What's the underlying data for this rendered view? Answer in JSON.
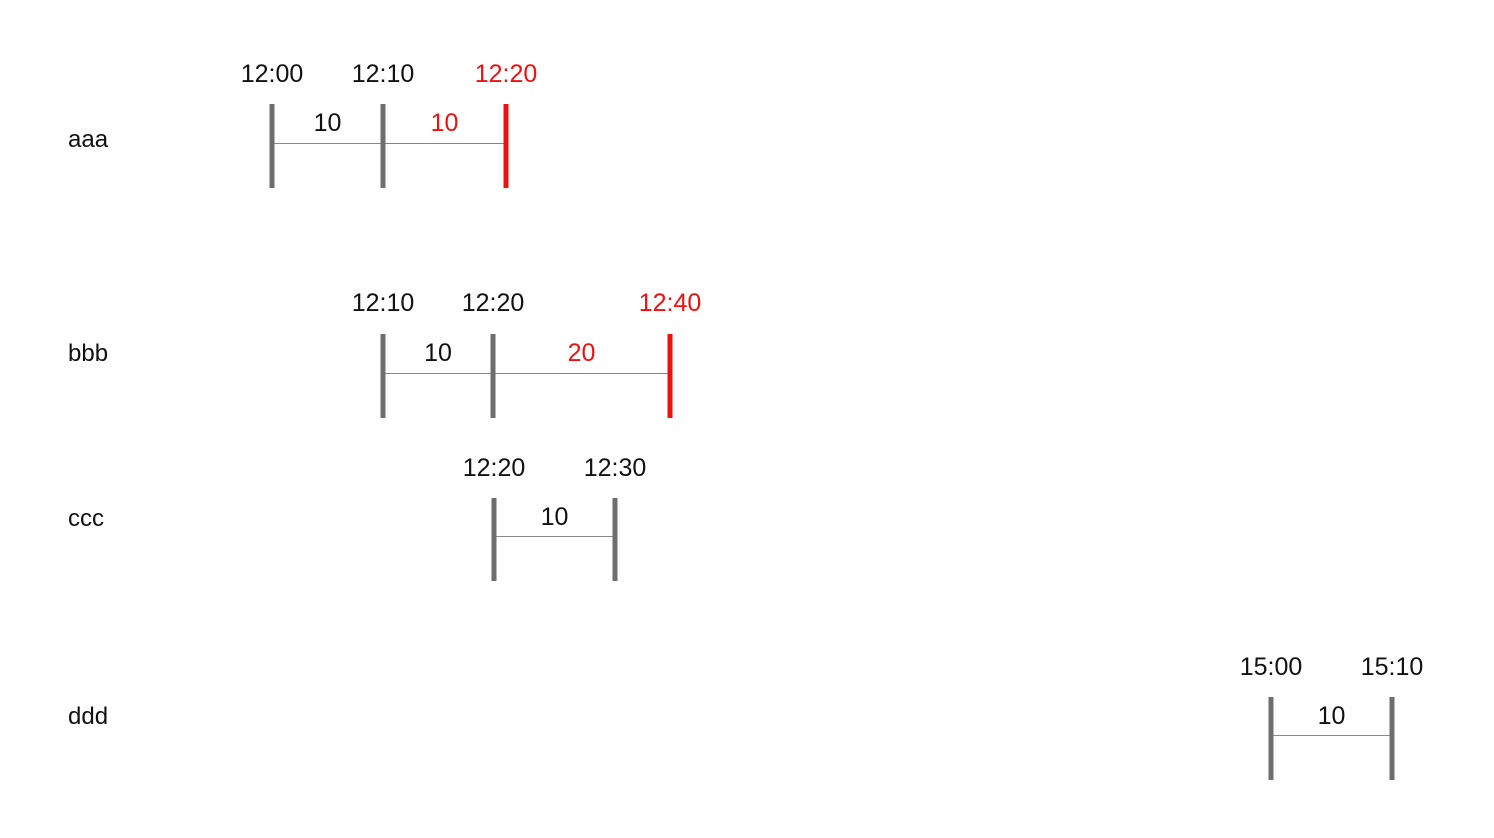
{
  "colors": {
    "normal": "#6e6e6e",
    "highlight": "#ee1111",
    "text": "#111111"
  },
  "rows": [
    {
      "label": "aaa",
      "times": [
        {
          "text": "12:00",
          "highlight": false
        },
        {
          "text": "12:10",
          "highlight": false
        },
        {
          "text": "12:20",
          "highlight": true
        }
      ],
      "durations": [
        {
          "text": "10",
          "highlight": false
        },
        {
          "text": "10",
          "highlight": true
        }
      ]
    },
    {
      "label": "bbb",
      "times": [
        {
          "text": "12:10",
          "highlight": false
        },
        {
          "text": "12:20",
          "highlight": false
        },
        {
          "text": "12:40",
          "highlight": true
        }
      ],
      "durations": [
        {
          "text": "10",
          "highlight": false
        },
        {
          "text": "20",
          "highlight": true
        }
      ]
    },
    {
      "label": "ccc",
      "times": [
        {
          "text": "12:20",
          "highlight": false
        },
        {
          "text": "12:30",
          "highlight": false
        }
      ],
      "durations": [
        {
          "text": "10",
          "highlight": false
        }
      ]
    },
    {
      "label": "ddd",
      "times": [
        {
          "text": "15:00",
          "highlight": false
        },
        {
          "text": "15:10",
          "highlight": false
        }
      ],
      "durations": [
        {
          "text": "10",
          "highlight": false
        }
      ]
    }
  ]
}
